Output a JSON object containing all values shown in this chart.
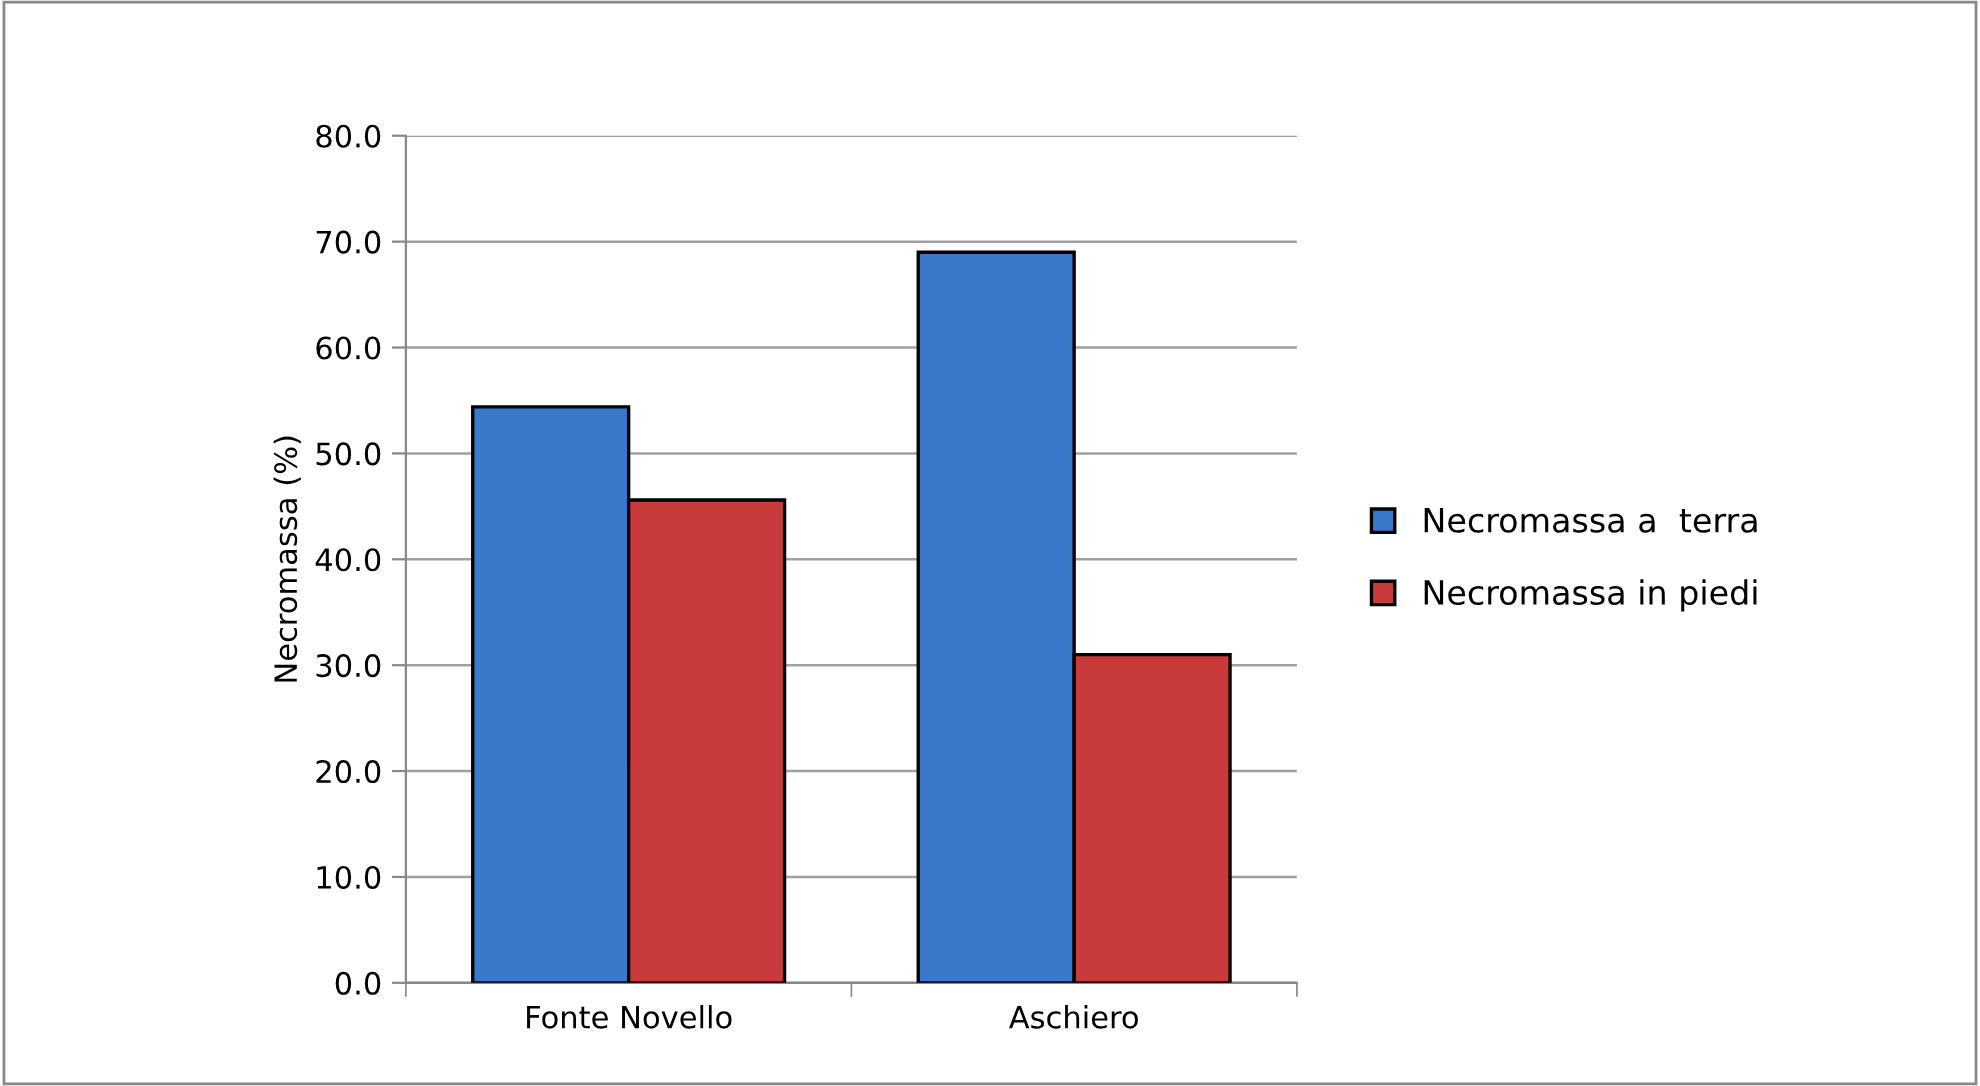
{
  "chart_data": {
    "type": "bar",
    "ylabel": "Necromassa (%)",
    "categories": [
      "Fonte Novello",
      "Aschiero"
    ],
    "series": [
      {
        "name": "Necromassa a  terra",
        "color": "#3a78c9",
        "values": [
          54.4,
          69.0
        ]
      },
      {
        "name": "Necromassa in piedi",
        "color": "#c93a3a",
        "values": [
          45.6,
          31.0
        ]
      }
    ],
    "ylim": [
      0,
      80
    ],
    "yticks": [
      {
        "value": 0,
        "label": "0.0"
      },
      {
        "value": 10,
        "label": "10.0"
      },
      {
        "value": 20,
        "label": "20.0"
      },
      {
        "value": 30,
        "label": "30.0"
      },
      {
        "value": 40,
        "label": "40.0"
      },
      {
        "value": 50,
        "label": "50.0"
      },
      {
        "value": 60,
        "label": "60.0"
      },
      {
        "value": 70,
        "label": "70.0"
      },
      {
        "value": 80,
        "label": "80.0"
      }
    ],
    "grid": "y",
    "legend": "right"
  }
}
